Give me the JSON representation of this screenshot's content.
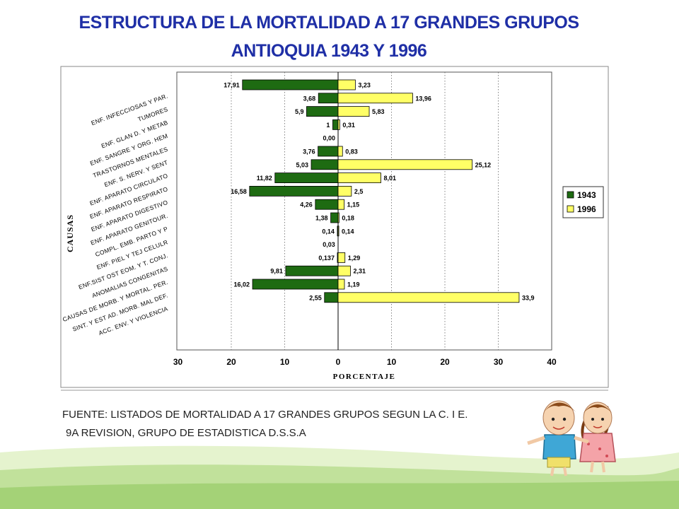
{
  "header": {
    "title_line1": "ESTRUCTURA DE LA MORTALIDAD A 17 GRANDES GRUPOS",
    "title_line2": "ANTIOQUIA 1943 Y 1996"
  },
  "footer": {
    "source_line1": "FUENTE: LISTADOS DE MORTALIDAD A 17 GRANDES GRUPOS SEGUN LA C. I E.",
    "source_line2": "9A REVISION, GRUPO DE ESTADISTICA D.S.S.A"
  },
  "chart_data": {
    "type": "bar",
    "orientation": "horizontal-butterfly",
    "title": "",
    "xlabel": "PORCENTAJE",
    "ylabel": "CAUSAS",
    "xlim": [
      30,
      40
    ],
    "x_ticks": [
      "30",
      "20",
      "10",
      "0",
      "10",
      "20",
      "30",
      "40"
    ],
    "grid": "vertical dotted",
    "legend_position": "right",
    "categories": [
      "ENF. INFECCIOSAS Y PAR.",
      "TUMORES",
      "ENF. GLAN D. Y METAB",
      "ENF. SANGRE Y ORG. HEM",
      "TRASTORNOS MENTALES",
      "ENF. S. NERV. Y SENT",
      "ENF. APARATO CIRCULATO",
      "ENF. APARATO RESPIRATO",
      "ENF. APARATO DIGESTIVO",
      "ENF. APARATO GENITOUR.",
      "COMPL. EMB. PARTO Y P",
      "ENF. PIEL Y TEJ CELULR",
      "ENF.SIST OST EOM. Y T. CONJ.",
      "ANOMALIAS CONGENITAS",
      "CAUSAS DE MORB. Y MORTAL. PER.",
      "SINT. Y EST AD. MORB. MAL DEF.",
      "ACC. ENV. Y VIOLENCIA"
    ],
    "series": [
      {
        "name": "1943",
        "color": "#1e6b12",
        "values": [
          17.91,
          3.68,
          5.9,
          1,
          0,
          3.76,
          5.03,
          11.82,
          16.58,
          4.26,
          1.38,
          0.14,
          0.03,
          0.137,
          9.81,
          16.02,
          2.55
        ],
        "labels": [
          "17,91",
          "3,68",
          "5,9",
          "1",
          "0,00",
          "3,76",
          "5,03",
          "11,82",
          "16,58",
          "4,26",
          "1,38",
          "0,14",
          "0,03",
          "0,137",
          "9,81",
          "16,02",
          "2,55"
        ]
      },
      {
        "name": "1996",
        "color": "#ffff66",
        "values": [
          3.23,
          13.96,
          5.83,
          0.31,
          0,
          0.83,
          25.12,
          8.01,
          2.5,
          1.15,
          0.18,
          0.14,
          0,
          1.29,
          2.31,
          1.19,
          33.9
        ],
        "labels": [
          "3,23",
          "13,96",
          "5,83",
          "0,31",
          "",
          "0,83",
          "25,12",
          "8,01",
          "2,5",
          "1,15",
          "0,18",
          "0,14",
          "",
          "1,29",
          "2,31",
          "1,19",
          "33,9"
        ]
      }
    ]
  }
}
